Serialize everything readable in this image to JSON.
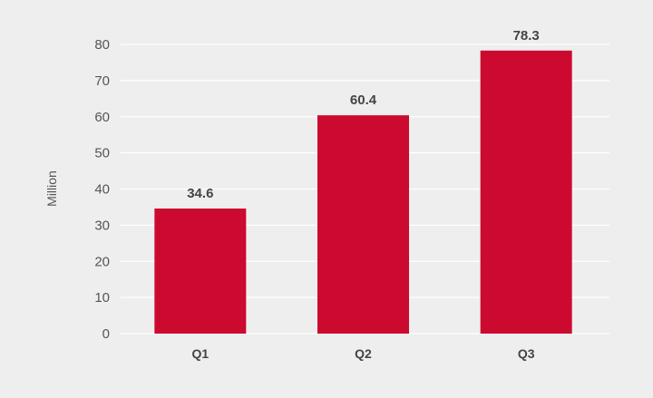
{
  "chart_data": {
    "type": "bar",
    "categories": [
      "Q1",
      "Q2",
      "Q3"
    ],
    "values": [
      34.6,
      60.4,
      78.3
    ],
    "value_labels": [
      "34.6",
      "60.4",
      "78.3"
    ],
    "title": "",
    "xlabel": "",
    "ylabel": "Million",
    "ylim": [
      0,
      80
    ],
    "yticks": [
      "0",
      "10",
      "20",
      "30",
      "40",
      "50",
      "60",
      "70",
      "80"
    ],
    "grid": true,
    "legend": "none"
  },
  "colors": {
    "background": "#eeeeee",
    "bar": "#cc0a2f",
    "grid": "#ffffff",
    "text": "#555555"
  }
}
